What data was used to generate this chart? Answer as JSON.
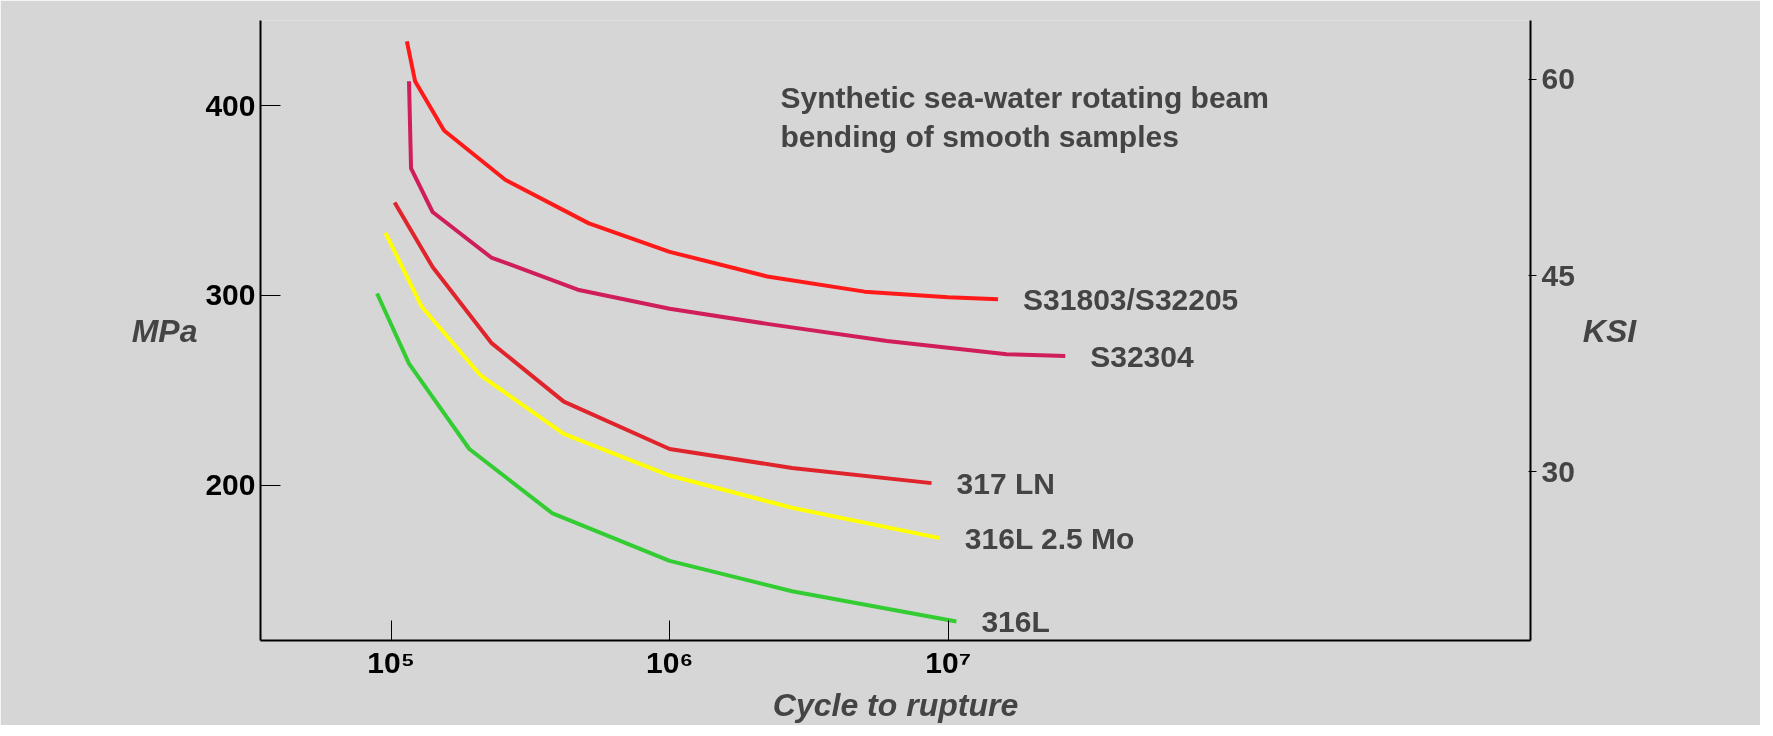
{
  "chart_data": {
    "type": "line",
    "title": "Synthetic sea-water rotating beam\nbending of smooth samples",
    "xlabel": "Cycle to rupture",
    "ylabel": "MPa",
    "y2label": "KSI",
    "log": "x",
    "grid": false,
    "legend": false,
    "marker": "none",
    "line_style": "solid",
    "xlim": [
      34000,
      1230000000
    ],
    "xticks": [
      {
        "value": 100000,
        "label": "10⁵"
      },
      {
        "value": 1000000,
        "label": "10⁶"
      },
      {
        "value": 10000000,
        "label": "10⁷"
      }
    ],
    "ylim": [
      118,
      445
    ],
    "yticks": [
      200,
      300,
      400
    ],
    "y2lim": [
      17.1,
      64.5
    ],
    "y2ticks": [
      30,
      45,
      60
    ],
    "series": [
      {
        "name": "S31803/S32205",
        "color": "#ff1a1a",
        "x": [
          114000,
          122000,
          155000,
          257000,
          513000,
          1000000,
          2240000,
          5010000,
          10000000,
          15100000
        ],
        "values": [
          434,
          413,
          387,
          361,
          338,
          323,
          310,
          302,
          299,
          298
        ]
      },
      {
        "name": "S32304",
        "color": "#d01e5a",
        "x": [
          116000,
          118000,
          141000,
          229000,
          468000,
          1000000,
          2240000,
          6030000,
          16200000,
          26300000
        ],
        "values": [
          413,
          367,
          344,
          320,
          303,
          293,
          285,
          276,
          269,
          268
        ]
      },
      {
        "name": "317 LN",
        "color": "#e0242c",
        "x": [
          103000,
          141000,
          229000,
          417000,
          1000000,
          2750000,
          8710000
        ],
        "values": [
          349,
          315,
          275,
          244,
          219,
          209,
          201
        ]
      },
      {
        "name": "316L 2.5 Mo",
        "color": "#ffff00",
        "x": [
          95500,
          129000,
          209000,
          417000,
          1000000,
          2750000,
          9330000
        ],
        "values": [
          333,
          294,
          258,
          227,
          205,
          188,
          172
        ]
      },
      {
        "name": "316L",
        "color": "#33cc33",
        "x": [
          89100,
          116000,
          191000,
          380000,
          1000000,
          2750000,
          10700000
        ],
        "values": [
          301,
          264,
          219,
          185,
          160,
          144,
          128
        ]
      }
    ]
  }
}
